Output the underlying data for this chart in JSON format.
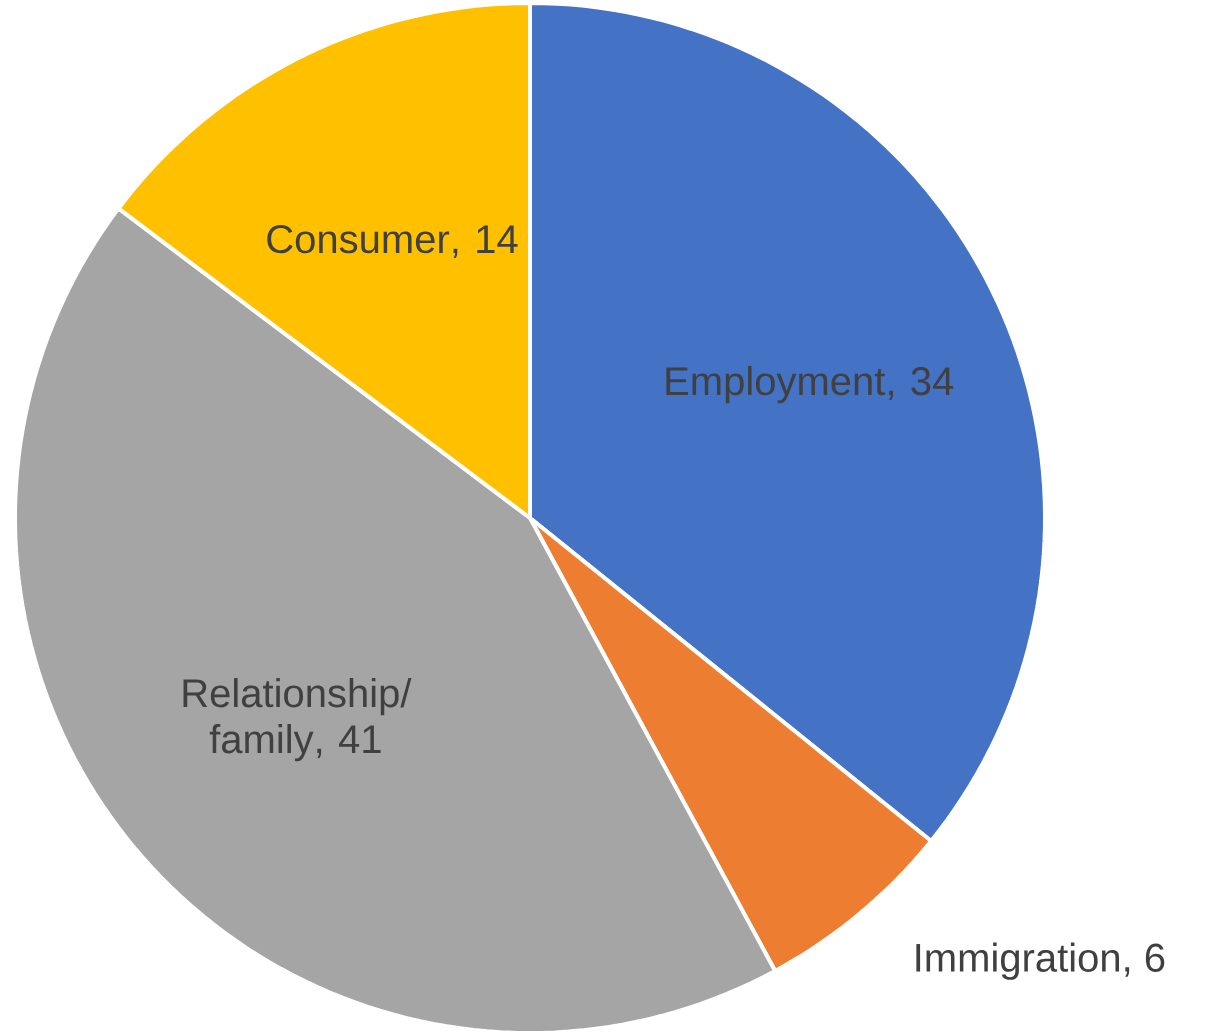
{
  "chart_data": {
    "type": "pie",
    "categories": [
      "Employment",
      "Immigration",
      "Relationship/ family",
      "Consumer"
    ],
    "values": [
      34,
      6,
      41,
      14
    ],
    "colors": [
      "#4472c4",
      "#ed7d31",
      "#a5a5a5",
      "#ffc000"
    ],
    "value_labels": [
      ", 34",
      ", 6",
      ", 41",
      ", 14"
    ]
  }
}
